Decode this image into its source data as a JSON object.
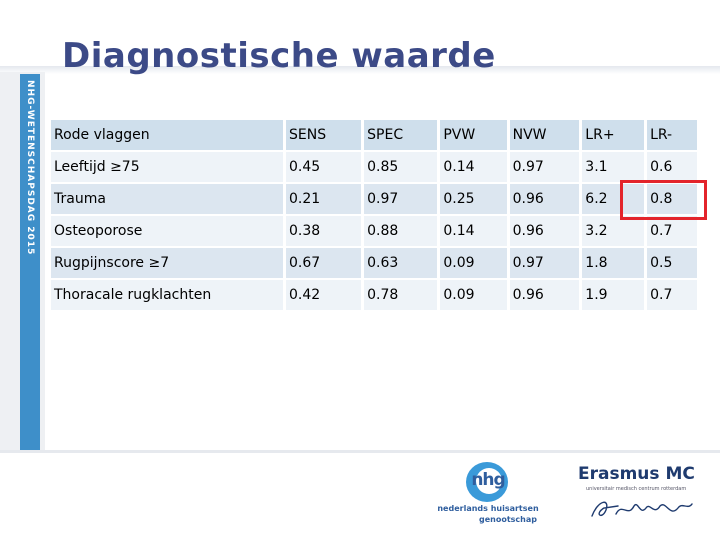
{
  "slide": {
    "title": "Diagnostische waarde",
    "side_label": "NHG-WETENSCHAPSDAG 2015"
  },
  "table": {
    "header": [
      "Rode vlaggen",
      "SENS",
      "SPEC",
      "PVW",
      "NVW",
      "LR+",
      "LR-"
    ],
    "rows": [
      [
        "Leeftijd ≥75",
        "0.45",
        "0.85",
        "0.14",
        "0.97",
        "3.1",
        "0.6"
      ],
      [
        "Trauma",
        "0.21",
        "0.97",
        "0.25",
        "0.96",
        "6.2",
        "0.8"
      ],
      [
        "Osteoporose",
        "0.38",
        "0.88",
        "0.14",
        "0.96",
        "3.2",
        "0.7"
      ],
      [
        "Rugpijnscore ≥7",
        "0.67",
        "0.63",
        "0.09",
        "0.97",
        "1.8",
        "0.5"
      ],
      [
        "Thoracale rugklachten",
        "0.42",
        "0.78",
        "0.09",
        "0.96",
        "1.9",
        "0.7"
      ]
    ],
    "highlight_color": "#e3242b"
  },
  "logos": {
    "nhg": {
      "mark": "nhg",
      "line1": "nederlands huisartsen",
      "line2": "genootschap"
    },
    "erasmus": {
      "name": "Erasmus MC",
      "subtitle": "universitair medisch centrum rotterdam"
    }
  },
  "colors": {
    "title": "#3c4a87",
    "side_band": "#3e8fc9",
    "header_fill": "#cfdfec",
    "row_fill_a": "#eef3f8",
    "row_fill_b": "#dce6f0"
  }
}
